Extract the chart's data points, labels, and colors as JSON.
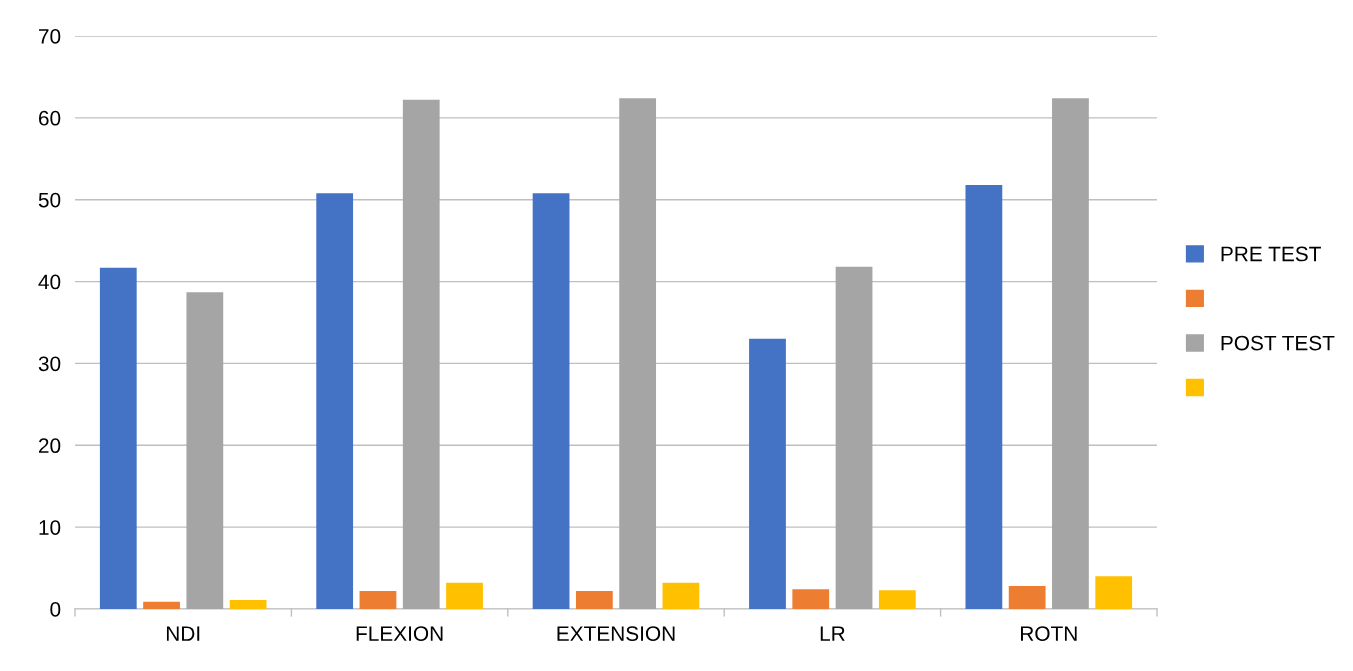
{
  "chart_data": {
    "type": "bar",
    "categories": [
      "NDI",
      "FLEXION",
      "EXTENSION",
      "LR",
      "ROTN"
    ],
    "series": [
      {
        "name": "PRE TEST",
        "color": "#4472c4",
        "values": [
          41.7,
          50.8,
          50.8,
          33.0,
          51.8
        ]
      },
      {
        "color": "#ed7d31",
        "values": [
          0.9,
          2.2,
          2.2,
          2.4,
          2.8
        ]
      },
      {
        "name": "POST TEST",
        "color": "#a5a5a5",
        "values": [
          38.7,
          62.2,
          62.4,
          41.8,
          62.4
        ]
      },
      {
        "color": "#ffc000",
        "values": [
          1.1,
          3.2,
          3.2,
          2.3,
          4.0
        ]
      }
    ],
    "ylim": [
      0,
      70
    ],
    "yticks": [
      0,
      10,
      20,
      30,
      40,
      50,
      60,
      70
    ],
    "grid": "y",
    "legend": "right"
  }
}
